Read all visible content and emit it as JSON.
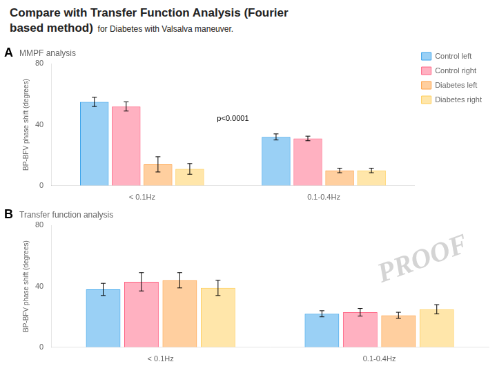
{
  "title": [
    "Compare with Transfer Function Analysis (Fourier",
    "based method)"
  ],
  "subtitle": "for Diabetes with Valsalva maneuver.",
  "watermark": "PROOF",
  "chart_data": [
    {
      "type": "bar",
      "label": "A",
      "title": "MMPF analysis",
      "ylabel": "BP-BFV phase shift (degrees)",
      "categories": [
        "< 0.1Hz",
        "0.1-0.4Hz"
      ],
      "series": [
        {
          "name": "Control left",
          "values": [
            55,
            32
          ],
          "errors": [
            3,
            2
          ]
        },
        {
          "name": "Control right",
          "values": [
            52,
            31
          ],
          "errors": [
            3,
            1.5
          ]
        },
        {
          "name": "Diabetes left",
          "values": [
            14,
            10
          ],
          "errors": [
            5,
            1.5
          ]
        },
        {
          "name": "Diabetes right",
          "values": [
            11,
            10
          ],
          "errors": [
            3.5,
            1.5
          ]
        }
      ],
      "annotations": [
        "p<0.0001"
      ],
      "ylim": [
        0,
        80
      ],
      "yticks": [
        0,
        40,
        80
      ],
      "grid": false,
      "legend": "upper right"
    },
    {
      "type": "bar",
      "label": "B",
      "title": "Transfer function analysis",
      "ylabel": "BP-BFV phase shift (degrees)",
      "categories": [
        "< 0.1Hz",
        "0.1-0.4Hz"
      ],
      "series": [
        {
          "name": "Control left",
          "values": [
            38,
            22
          ],
          "errors": [
            4,
            2
          ]
        },
        {
          "name": "Control right",
          "values": [
            43,
            23
          ],
          "errors": [
            6,
            2.5
          ]
        },
        {
          "name": "Diabetes left",
          "values": [
            44,
            21
          ],
          "errors": [
            5,
            2
          ]
        },
        {
          "name": "Diabetes right",
          "values": [
            39,
            25
          ],
          "errors": [
            5,
            3
          ]
        }
      ],
      "ylim": [
        0,
        80
      ],
      "yticks": [
        0,
        40,
        80
      ],
      "grid": false
    }
  ]
}
